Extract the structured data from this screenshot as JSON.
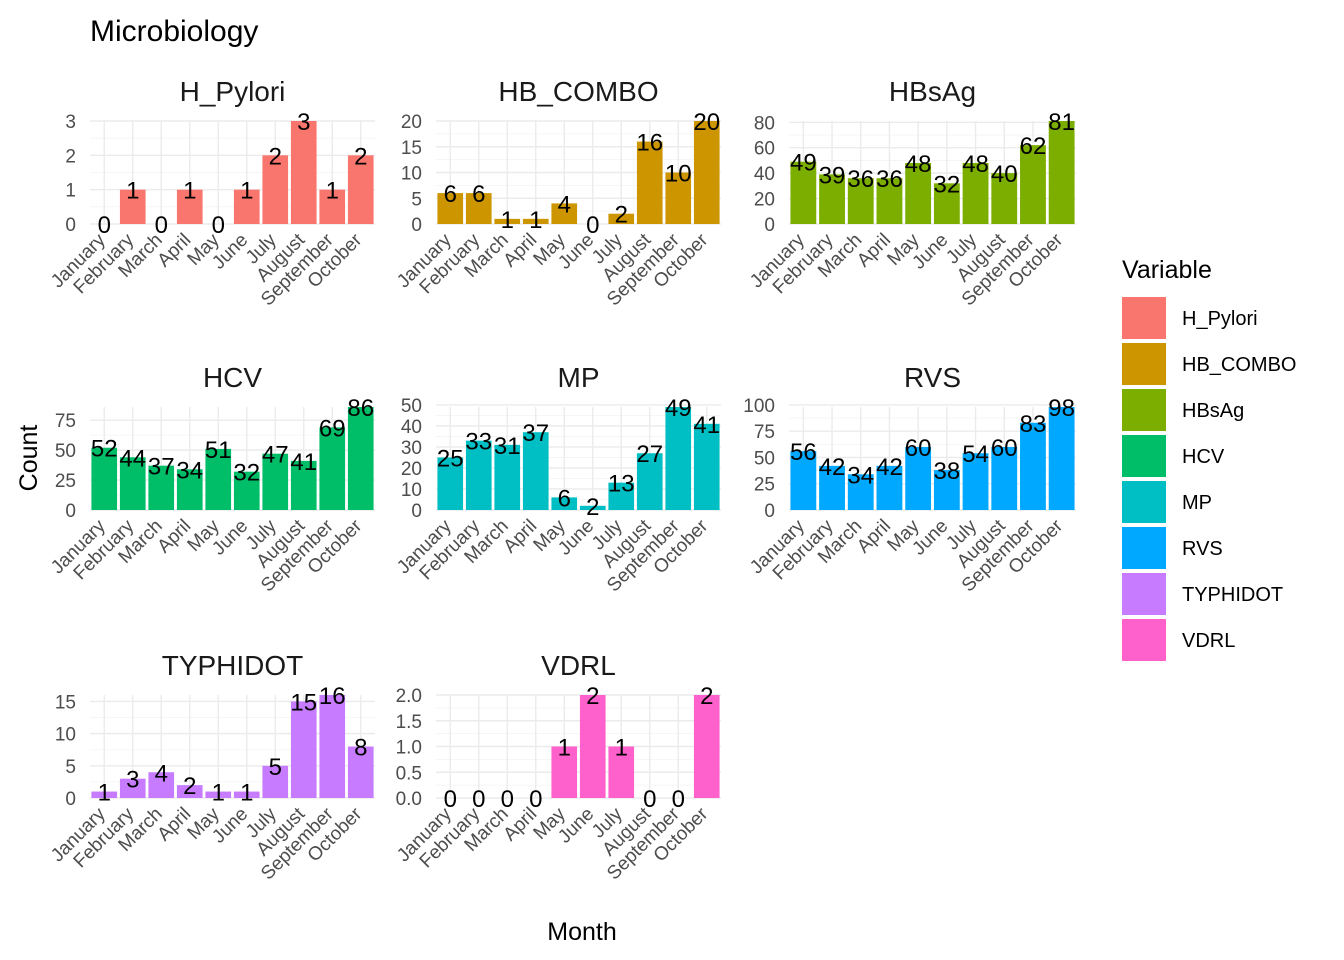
{
  "chart_data": {
    "type": "bar",
    "title": "Microbiology",
    "xlabel": "Month",
    "ylabel": "Count",
    "legend": {
      "title": "Variable",
      "position": "right"
    },
    "categories": [
      "January",
      "February",
      "March",
      "April",
      "May",
      "June",
      "July",
      "August",
      "September",
      "October"
    ],
    "grid": true,
    "series": [
      {
        "name": "H_Pylori",
        "color": "#F8766D",
        "values": [
          0,
          1,
          0,
          1,
          0,
          1,
          2,
          3,
          1,
          2
        ],
        "ylim": [
          0,
          3
        ],
        "yticks": [
          0,
          1,
          2,
          3
        ],
        "ytick_labels": [
          "0",
          "1",
          "2",
          "3"
        ]
      },
      {
        "name": "HB_COMBO",
        "color": "#CD9600",
        "values": [
          6,
          6,
          1,
          1,
          4,
          0,
          2,
          16,
          10,
          20
        ],
        "ylim": [
          0,
          20
        ],
        "yticks": [
          0,
          5,
          10,
          15,
          20
        ],
        "ytick_labels": [
          "0",
          "5",
          "10",
          "15",
          "20"
        ]
      },
      {
        "name": "HBsAg",
        "color": "#7CAE00",
        "values": [
          49,
          39,
          36,
          36,
          48,
          32,
          48,
          40,
          62,
          81
        ],
        "ylim": [
          0,
          81
        ],
        "yticks": [
          0,
          20,
          40,
          60,
          80
        ],
        "ytick_labels": [
          "0",
          "20",
          "40",
          "60",
          "80"
        ]
      },
      {
        "name": "HCV",
        "color": "#00BE67",
        "values": [
          52,
          44,
          37,
          34,
          51,
          32,
          47,
          41,
          69,
          86
        ],
        "ylim": [
          0,
          86
        ],
        "yticks": [
          0,
          25,
          50,
          75
        ],
        "ytick_labels": [
          "0",
          "25",
          "50",
          "75"
        ]
      },
      {
        "name": "MP",
        "color": "#00BFC4",
        "values": [
          25,
          33,
          31,
          37,
          6,
          2,
          13,
          27,
          49,
          41
        ],
        "ylim": [
          0,
          49
        ],
        "yticks": [
          0,
          10,
          20,
          30,
          40,
          50
        ],
        "ytick_labels": [
          "0",
          "10",
          "20",
          "30",
          "40",
          "50"
        ]
      },
      {
        "name": "RVS",
        "color": "#00A9FF",
        "values": [
          56,
          42,
          34,
          42,
          60,
          38,
          54,
          60,
          83,
          98
        ],
        "ylim": [
          0,
          98
        ],
        "yticks": [
          0,
          25,
          50,
          75,
          100
        ],
        "ytick_labels": [
          "0",
          "25",
          "50",
          "75",
          "100"
        ]
      },
      {
        "name": "TYPHIDOT",
        "color": "#C77CFF",
        "values": [
          1,
          3,
          4,
          2,
          1,
          1,
          5,
          15,
          16,
          8
        ],
        "ylim": [
          0,
          16
        ],
        "yticks": [
          0,
          5,
          10,
          15
        ],
        "ytick_labels": [
          "0",
          "5",
          "10",
          "15"
        ]
      },
      {
        "name": "VDRL",
        "color": "#FF61CC",
        "values": [
          0,
          0,
          0,
          0,
          1,
          2,
          1,
          0,
          0,
          2
        ],
        "ylim": [
          0,
          2
        ],
        "yticks": [
          0,
          0.5,
          1,
          1.5,
          2
        ],
        "ytick_labels": [
          "0.0",
          "0.5",
          "1.0",
          "1.5",
          "2.0"
        ]
      }
    ]
  }
}
